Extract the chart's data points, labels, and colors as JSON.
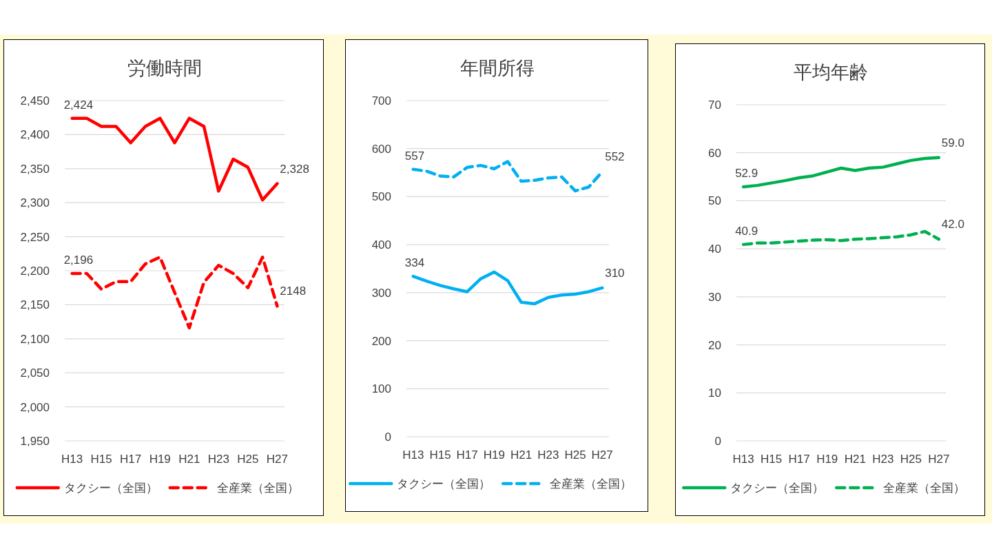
{
  "chart_data": [
    {
      "type": "line",
      "title": "労働時間",
      "categories": [
        "H13",
        null,
        "H15",
        null,
        "H17",
        null,
        "H19",
        null,
        "H21",
        null,
        "H23",
        null,
        "H25",
        null,
        "H27"
      ],
      "ylim": [
        1950,
        2450
      ],
      "yticks": [
        {
          "value": 1950,
          "label": "1,950"
        },
        {
          "value": 2000,
          "label": "2,000"
        },
        {
          "value": 2050,
          "label": "2,050"
        },
        {
          "value": 2100,
          "label": "2,100"
        },
        {
          "value": 2150,
          "label": "2,150"
        },
        {
          "value": 2200,
          "label": "2,200"
        },
        {
          "value": 2250,
          "label": "2,250"
        },
        {
          "value": 2300,
          "label": "2,300"
        },
        {
          "value": 2350,
          "label": "2,350"
        },
        {
          "value": 2400,
          "label": "2,400"
        },
        {
          "value": 2450,
          "label": "2,450"
        }
      ],
      "grid": "y",
      "legend": "bottom",
      "series": [
        {
          "name": "タクシー（全国）",
          "color": "#ff0000",
          "line_style": "solid",
          "values": [
            2424,
            2424,
            2412,
            2412,
            2388,
            2412,
            2424,
            2388,
            2424,
            2412,
            2317,
            2364,
            2352,
            2304,
            2328
          ],
          "value_labels": [
            "2,424",
            null,
            null,
            null,
            null,
            null,
            null,
            null,
            null,
            null,
            null,
            null,
            null,
            null,
            "2,328"
          ]
        },
        {
          "name": "全産業（全国）",
          "color": "#ff0000",
          "line_style": "dashed",
          "values": [
            2196,
            2196,
            2173,
            2184,
            2184,
            2210,
            2220,
            2168,
            2116,
            2183,
            2208,
            2196,
            2175,
            2220,
            2148
          ],
          "value_labels": [
            "2,196",
            null,
            null,
            null,
            null,
            null,
            null,
            null,
            null,
            null,
            null,
            null,
            null,
            null,
            "2148"
          ]
        }
      ]
    },
    {
      "type": "line",
      "title": "年間所得",
      "categories": [
        "H13",
        null,
        "H15",
        null,
        "H17",
        null,
        "H19",
        null,
        "H21",
        null,
        "H23",
        null,
        "H25",
        null,
        "H27"
      ],
      "ylim": [
        0,
        700
      ],
      "yticks": [
        0,
        100,
        200,
        300,
        400,
        500,
        600,
        700
      ],
      "grid": "y",
      "legend": "bottom",
      "series": [
        {
          "name": "タクシー（全国）",
          "color": "#00b0f0",
          "line_style": "solid",
          "values": [
            334,
            324,
            315,
            308,
            302,
            329,
            343,
            325,
            280,
            277,
            290,
            295,
            297,
            302,
            310
          ],
          "value_labels": [
            "334",
            null,
            null,
            null,
            null,
            null,
            null,
            null,
            null,
            null,
            null,
            null,
            null,
            null,
            "310"
          ]
        },
        {
          "name": "全産業（全国）",
          "color": "#00b0f0",
          "line_style": "dashed",
          "values": [
            557,
            553,
            543,
            541,
            561,
            565,
            558,
            573,
            532,
            534,
            539,
            541,
            512,
            520,
            552
          ],
          "value_labels": [
            "557",
            null,
            null,
            null,
            null,
            null,
            null,
            null,
            null,
            null,
            null,
            null,
            null,
            null,
            "552"
          ]
        }
      ]
    },
    {
      "type": "line",
      "title": "平均年齢",
      "categories": [
        "H13",
        null,
        "H15",
        null,
        "H17",
        null,
        "H19",
        null,
        "H21",
        null,
        "H23",
        null,
        "H25",
        null,
        "H27"
      ],
      "ylim": [
        0,
        70
      ],
      "yticks": [
        0,
        10,
        20,
        30,
        40,
        50,
        60,
        70
      ],
      "grid": "y",
      "legend": "bottom",
      "series": [
        {
          "name": "タクシー（全国）",
          "color": "#00b050",
          "line_style": "solid",
          "values": [
            52.9,
            53.2,
            53.7,
            54.2,
            54.8,
            55.2,
            56.0,
            56.8,
            56.3,
            56.8,
            57.0,
            57.7,
            58.4,
            58.8,
            59.0
          ],
          "value_labels": [
            "52.9",
            null,
            null,
            null,
            null,
            null,
            null,
            null,
            null,
            null,
            null,
            null,
            null,
            null,
            "59.0"
          ]
        },
        {
          "name": "全産業（全国）",
          "color": "#00b050",
          "line_style": "dashed",
          "values": [
            40.9,
            41.2,
            41.2,
            41.4,
            41.6,
            41.8,
            41.9,
            41.7,
            42.0,
            42.1,
            42.3,
            42.5,
            42.9,
            43.6,
            42.0
          ],
          "value_labels": [
            "40.9",
            null,
            null,
            null,
            null,
            null,
            null,
            null,
            null,
            null,
            null,
            null,
            null,
            null,
            "42.0"
          ]
        }
      ]
    }
  ]
}
